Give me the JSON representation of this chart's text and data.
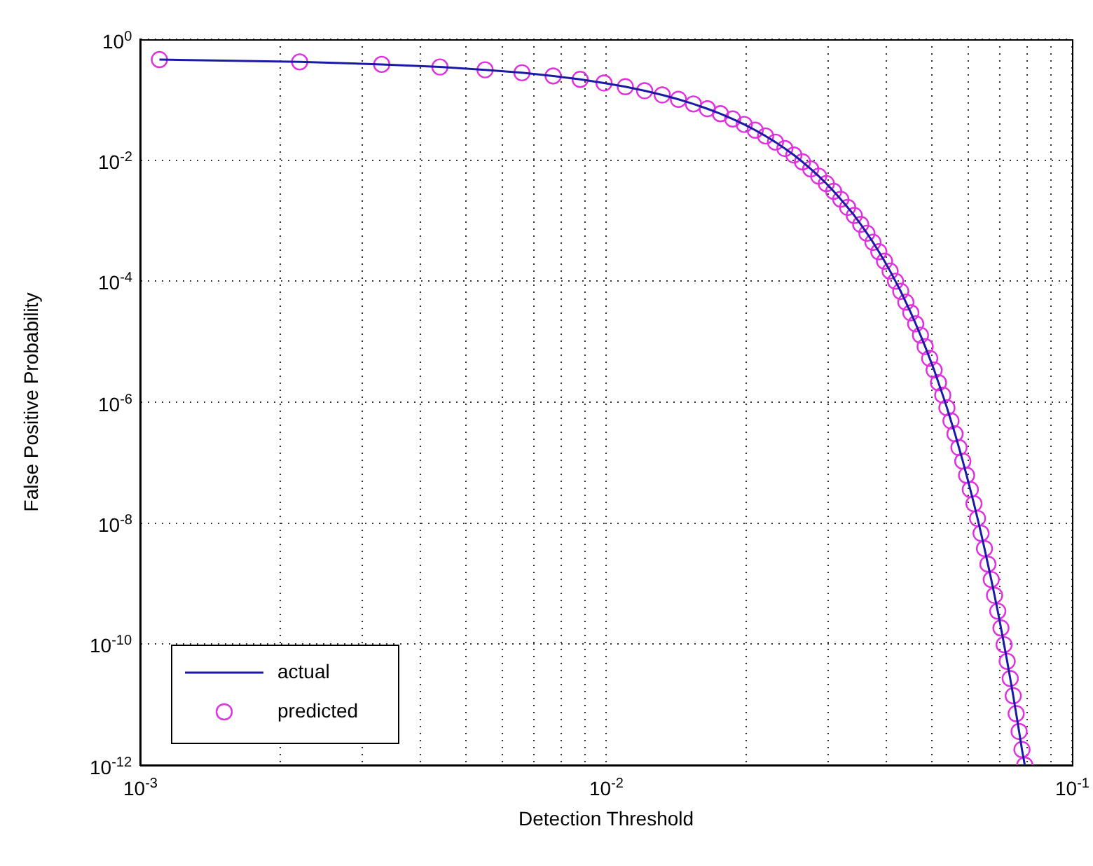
{
  "chart_data": {
    "type": "line",
    "xlabel": "Detection Threshold",
    "ylabel": "False Positive Probability",
    "log": "xy",
    "grid": true,
    "legend": "bottom left",
    "xlim": [
      0.001,
      0.1
    ],
    "ylim": [
      1e-12,
      1
    ],
    "xticks": [
      {
        "value": 0.001,
        "label": "10$^{-3}$"
      },
      {
        "value": 0.002,
        "label": null
      },
      {
        "value": 0.003,
        "label": null
      },
      {
        "value": 0.004,
        "label": null
      },
      {
        "value": 0.005,
        "label": null
      },
      {
        "value": 0.006,
        "label": null
      },
      {
        "value": 0.007,
        "label": null
      },
      {
        "value": 0.008,
        "label": null
      },
      {
        "value": 0.009,
        "label": null
      },
      {
        "value": 0.01,
        "label": "10$^{-2}$"
      },
      {
        "value": 0.02,
        "label": null
      },
      {
        "value": 0.03,
        "label": null
      },
      {
        "value": 0.04,
        "label": null
      },
      {
        "value": 0.05,
        "label": null
      },
      {
        "value": 0.06,
        "label": null
      },
      {
        "value": 0.07,
        "label": null
      },
      {
        "value": 0.08,
        "label": null
      },
      {
        "value": 0.09,
        "label": null
      },
      {
        "value": 0.1,
        "label": "10$^{-1}$"
      }
    ],
    "yticks": [
      {
        "value": 1e-12,
        "label": "10$^{-12}$"
      },
      {
        "value": 1e-10,
        "label": "10$^{-10}$"
      },
      {
        "value": 1e-08,
        "label": "10$^{-8}$"
      },
      {
        "value": 1e-06,
        "label": "10$^{-6}$"
      },
      {
        "value": 0.0001,
        "label": "10$^{-4}$"
      },
      {
        "value": 0.01,
        "label": "10$^{-2}$"
      },
      {
        "value": 1,
        "label": "10$^{0}$"
      }
    ],
    "x": [
      0.0011,
      0.0022,
      0.0033,
      0.0044,
      0.0055,
      0.0066,
      0.0077,
      0.0088,
      0.0099,
      0.011,
      0.0121,
      0.0132,
      0.0143,
      0.0154,
      0.0165,
      0.0176,
      0.0187,
      0.0198,
      0.0209,
      0.022,
      0.0231,
      0.0242,
      0.0253,
      0.0264,
      0.0275,
      0.0286,
      0.0297,
      0.0308,
      0.0319,
      0.033,
      0.0341,
      0.0352,
      0.0363,
      0.0374,
      0.0385,
      0.0396,
      0.0407,
      0.0418,
      0.0429,
      0.044,
      0.0451,
      0.0462,
      0.0473,
      0.0484,
      0.0495,
      0.0506,
      0.0517,
      0.0528,
      0.0539,
      0.055,
      0.0561,
      0.0572,
      0.0583,
      0.0594,
      0.0605,
      0.0616,
      0.0627,
      0.0638,
      0.0649,
      0.066,
      0.0671,
      0.0682,
      0.0693,
      0.0704,
      0.0715,
      0.0726,
      0.0737,
      0.0748,
      0.0759,
      0.077,
      0.0781,
      0.0792
    ],
    "series": [
      {
        "name": "actual",
        "type": "line",
        "color": "#1a1aa6",
        "line_style": "solid",
        "marker": "none",
        "values": [
          0.461,
          0.422,
          0.384,
          0.348,
          0.312,
          0.279,
          0.247,
          0.217,
          0.189,
          0.164,
          0.141,
          0.12,
          0.1015,
          0.0852,
          0.0709,
          0.0587,
          0.0481,
          0.039,
          0.0314,
          0.0251,
          0.0199,
          0.0156,
          0.0122,
          0.00939,
          0.00718,
          0.00546,
          0.00411,
          0.00306,
          0.00226,
          0.00166,
          0.00122,
          0.00087,
          0.00062,
          0.00044,
          0.000307,
          0.000214,
          0.000147,
          0.0001,
          6.8e-05,
          4.5e-05,
          3e-05,
          1.97e-05,
          1.28e-05,
          8.3e-06,
          5.3e-06,
          3.4e-06,
          2.1e-06,
          1.31e-06,
          8.1e-07,
          4.9e-07,
          3e-07,
          1.78e-07,
          1.06e-07,
          6.2e-08,
          3.6e-08,
          2.1e-08,
          1.2e-08,
          6.8e-09,
          3.8e-09,
          2.1e-09,
          1.17e-09,
          6.4e-10,
          3.5e-10,
          1.85e-10,
          9.8e-11,
          5.2e-11,
          2.7e-11,
          1.4e-11,
          7.1e-12,
          3.6e-12,
          1.81e-12,
          1e-12
        ]
      },
      {
        "name": "predicted",
        "type": "scatter",
        "color": "#e030e0",
        "marker": "circle",
        "values": [
          0.461,
          0.422,
          0.384,
          0.348,
          0.312,
          0.279,
          0.247,
          0.217,
          0.189,
          0.164,
          0.141,
          0.12,
          0.1015,
          0.0852,
          0.0709,
          0.0587,
          0.0481,
          0.039,
          0.0314,
          0.0251,
          0.0199,
          0.0156,
          0.0122,
          0.00939,
          0.00718,
          0.00546,
          0.00411,
          0.00306,
          0.00226,
          0.00166,
          0.00122,
          0.00087,
          0.00062,
          0.00044,
          0.000307,
          0.000214,
          0.000147,
          0.0001,
          6.8e-05,
          4.5e-05,
          3e-05,
          1.97e-05,
          1.28e-05,
          8.3e-06,
          5.3e-06,
          3.4e-06,
          2.1e-06,
          1.31e-06,
          8.1e-07,
          4.9e-07,
          3e-07,
          1.78e-07,
          1.06e-07,
          6.2e-08,
          3.6e-08,
          2.1e-08,
          1.2e-08,
          6.8e-09,
          3.8e-09,
          2.1e-09,
          1.17e-09,
          6.4e-10,
          3.5e-10,
          1.85e-10,
          9.8e-11,
          5.2e-11,
          2.7e-11,
          1.4e-11,
          7.1e-12,
          3.6e-12,
          1.81e-12,
          1e-12
        ]
      }
    ]
  }
}
